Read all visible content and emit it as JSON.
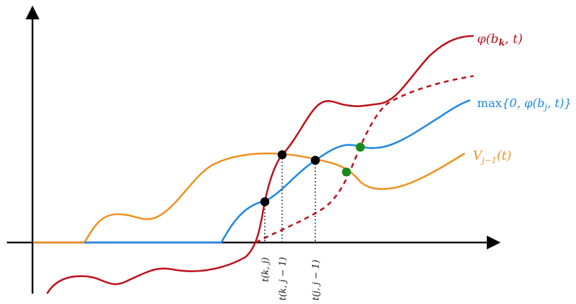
{
  "labels": {
    "phi": "φ(b_k, t)",
    "max": "max{0, φ(b_j, t)}",
    "v": "V_{j−1}(t)"
  },
  "tick_labels": [
    "t(k, j)",
    "t(k, j − 1)",
    "t(j, j − 1)"
  ],
  "colors": {
    "red": "#c0101a",
    "blue": "#1e88e5",
    "orange": "#f0901e",
    "green": "#1a8a1a",
    "black": "#000000"
  }
}
